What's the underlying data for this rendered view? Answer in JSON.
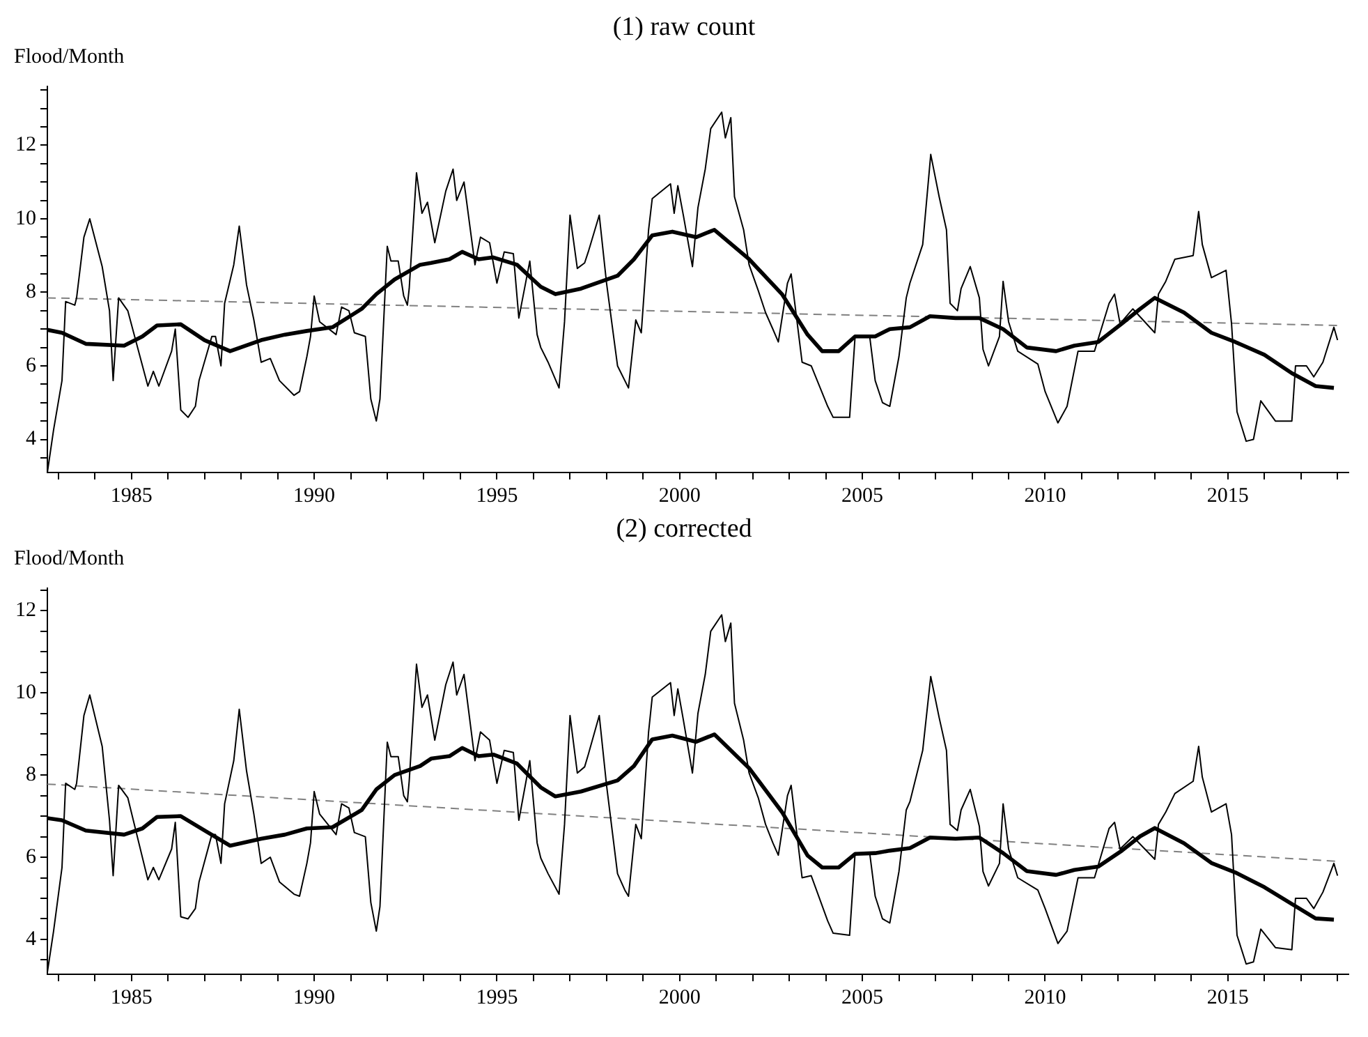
{
  "chart_data": [
    {
      "type": "line",
      "title": "(1) raw count",
      "ylabel": "Flood/Month",
      "marker": "none",
      "xlim": [
        1982.7,
        2018.3
      ],
      "ylim": [
        3.1,
        13.6
      ],
      "xticks": [
        {
          "value": 1983,
          "label": null
        },
        {
          "value": 1984,
          "label": null
        },
        1985,
        {
          "value": 1986,
          "label": null
        },
        {
          "value": 1987,
          "label": null
        },
        {
          "value": 1988,
          "label": null
        },
        {
          "value": 1989,
          "label": null
        },
        1990,
        {
          "value": 1991,
          "label": null
        },
        {
          "value": 1992,
          "label": null
        },
        {
          "value": 1993,
          "label": null
        },
        {
          "value": 1994,
          "label": null
        },
        1995,
        {
          "value": 1996,
          "label": null
        },
        {
          "value": 1997,
          "label": null
        },
        {
          "value": 1998,
          "label": null
        },
        {
          "value": 1999,
          "label": null
        },
        2000,
        {
          "value": 2001,
          "label": null
        },
        {
          "value": 2002,
          "label": null
        },
        {
          "value": 2003,
          "label": null
        },
        {
          "value": 2004,
          "label": null
        },
        2005,
        {
          "value": 2006,
          "label": null
        },
        {
          "value": 2007,
          "label": null
        },
        {
          "value": 2008,
          "label": null
        },
        {
          "value": 2009,
          "label": null
        },
        2010,
        {
          "value": 2011,
          "label": null
        },
        {
          "value": 2012,
          "label": null
        },
        {
          "value": 2013,
          "label": null
        },
        {
          "value": 2014,
          "label": null
        },
        2015,
        {
          "value": 2016,
          "label": null
        },
        {
          "value": 2017,
          "label": null
        },
        {
          "value": 2018,
          "label": null
        }
      ],
      "yticks": [
        {
          "value": 3.5,
          "label": null
        },
        4,
        {
          "value": 4.5,
          "label": null
        },
        {
          "value": 5,
          "label": null
        },
        {
          "value": 5.5,
          "label": null
        },
        6,
        {
          "value": 6.5,
          "label": null
        },
        {
          "value": 7,
          "label": null
        },
        {
          "value": 7.5,
          "label": null
        },
        8,
        {
          "value": 8.5,
          "label": null
        },
        {
          "value": 9,
          "label": null
        },
        {
          "value": 9.5,
          "label": null
        },
        10,
        {
          "value": 10.5,
          "label": null
        },
        {
          "value": 11,
          "label": null
        },
        {
          "value": 11.5,
          "label": null
        },
        12,
        {
          "value": 12.5,
          "label": null
        },
        {
          "value": 13,
          "label": null
        },
        {
          "value": 13.5,
          "label": null
        }
      ],
      "series": [
        {
          "color": "#000000",
          "x": [
            1982.7,
            1982.87,
            1983.1,
            1983.2,
            1983.45,
            1983.5,
            1983.7,
            1983.86,
            1984.2,
            1984.4,
            1984.5,
            1984.65,
            1984.9,
            1985.45,
            1985.6,
            1985.75,
            1986.1,
            1986.2,
            1986.35,
            1986.55,
            1986.75,
            1986.85,
            1987.2,
            1987.3,
            1987.45,
            1987.55,
            1987.8,
            1987.95,
            1988.15,
            1988.35,
            1988.55,
            1988.8,
            1989.05,
            1989.45,
            1989.6,
            1989.8,
            1989.9,
            1990.0,
            1990.15,
            1990.6,
            1990.75,
            1990.95,
            1991.1,
            1991.4,
            1991.55,
            1991.7,
            1991.8,
            1992.0,
            1992.1,
            1992.3,
            1992.45,
            1992.55,
            1992.6,
            1992.8,
            1992.95,
            1993.1,
            1993.3,
            1993.6,
            1993.8,
            1993.9,
            1994.1,
            1994.4,
            1994.55,
            1994.8,
            1995.0,
            1995.2,
            1995.45,
            1995.6,
            1995.9,
            1996.1,
            1996.2,
            1996.4,
            1996.7,
            1996.85,
            1997.0,
            1997.2,
            1997.4,
            1997.5,
            1997.8,
            1998.0,
            1998.3,
            1998.5,
            1998.6,
            1998.8,
            1998.95,
            1999.15,
            1999.25,
            1999.75,
            1999.85,
            1999.95,
            2000.1,
            2000.35,
            2000.5,
            2000.7,
            2000.85,
            2001.15,
            2001.25,
            2001.4,
            2001.5,
            2001.75,
            2001.9,
            2002.15,
            2002.35,
            2002.55,
            2002.7,
            2002.95,
            2003.05,
            2003.35,
            2003.6,
            2004.05,
            2004.2,
            2004.65,
            2004.8,
            2005.2,
            2005.35,
            2005.55,
            2005.75,
            2006.0,
            2006.2,
            2006.3,
            2006.65,
            2006.87,
            2007.1,
            2007.3,
            2007.4,
            2007.6,
            2007.7,
            2007.95,
            2008.2,
            2008.3,
            2008.45,
            2008.75,
            2008.85,
            2009.0,
            2009.25,
            2009.8,
            2010.0,
            2010.35,
            2010.6,
            2010.9,
            2011.35,
            2011.75,
            2011.9,
            2012.05,
            2012.4,
            2013.0,
            2013.1,
            2013.3,
            2013.55,
            2014.05,
            2014.2,
            2014.3,
            2014.55,
            2014.95,
            2015.1,
            2015.25,
            2015.5,
            2015.7,
            2015.9,
            2016.3,
            2016.75,
            2016.85,
            2017.15,
            2017.35,
            2017.6,
            2017.9,
            2018.0
          ],
          "values": [
            3.1,
            4.26,
            5.6,
            7.75,
            7.65,
            7.85,
            9.5,
            10.0,
            8.7,
            7.5,
            5.6,
            7.85,
            7.5,
            5.45,
            5.85,
            5.45,
            6.4,
            7.0,
            4.8,
            4.6,
            4.9,
            5.6,
            6.8,
            6.8,
            6.0,
            7.7,
            8.75,
            9.8,
            8.2,
            7.25,
            6.1,
            6.2,
            5.6,
            5.2,
            5.3,
            6.25,
            6.8,
            7.9,
            7.2,
            6.85,
            7.6,
            7.5,
            6.9,
            6.8,
            5.1,
            4.5,
            5.1,
            9.25,
            8.85,
            8.85,
            7.9,
            7.65,
            8.1,
            11.25,
            10.15,
            10.45,
            9.35,
            10.75,
            11.35,
            10.5,
            11.0,
            8.75,
            9.5,
            9.35,
            8.25,
            9.1,
            9.05,
            7.3,
            8.85,
            6.85,
            6.5,
            6.1,
            5.4,
            7.2,
            10.1,
            8.65,
            8.8,
            9.1,
            10.1,
            8.25,
            6.0,
            5.6,
            5.4,
            7.25,
            6.9,
            9.7,
            10.55,
            10.95,
            10.15,
            10.9,
            10.1,
            8.7,
            10.3,
            11.35,
            12.45,
            12.9,
            12.2,
            12.75,
            10.6,
            9.7,
            8.75,
            8.05,
            7.45,
            7.0,
            6.65,
            8.25,
            8.5,
            6.1,
            6.0,
            4.9,
            4.6,
            4.6,
            6.8,
            6.8,
            5.6,
            5.0,
            4.9,
            6.25,
            7.85,
            8.25,
            9.3,
            11.75,
            10.6,
            9.7,
            7.7,
            7.5,
            8.1,
            8.7,
            7.85,
            6.45,
            6.0,
            6.8,
            8.3,
            7.2,
            6.4,
            6.05,
            5.3,
            4.45,
            4.9,
            6.4,
            6.4,
            7.7,
            7.95,
            7.15,
            7.55,
            6.9,
            7.95,
            8.3,
            8.9,
            9.0,
            10.2,
            9.3,
            8.4,
            8.6,
            7.15,
            4.75,
            3.95,
            4.0,
            5.05,
            4.5,
            4.5,
            6.0,
            6.0,
            5.7,
            6.1,
            7.05,
            6.7
          ]
        },
        {
          "color": "#000000",
          "x": [
            1982.7,
            1983.1,
            1983.75,
            1984.8,
            1985.3,
            1985.7,
            1986.35,
            1987.0,
            1987.7,
            1988.55,
            1989.2,
            1989.8,
            1990.5,
            1991.3,
            1991.7,
            1992.2,
            1992.9,
            1993.2,
            1993.7,
            1994.05,
            1994.5,
            1994.9,
            1995.55,
            1996.2,
            1996.6,
            1997.3,
            1998.3,
            1998.75,
            1999.25,
            1999.8,
            2000.45,
            2000.95,
            2001.9,
            2002.8,
            2003.5,
            2003.9,
            2004.35,
            2004.8,
            2005.35,
            2005.75,
            2006.3,
            2006.85,
            2007.55,
            2008.2,
            2008.85,
            2009.5,
            2010.3,
            2010.8,
            2011.45,
            2012.1,
            2012.6,
            2013.0,
            2013.8,
            2014.55,
            2015.2,
            2016.0,
            2016.75,
            2017.4,
            2017.9
          ],
          "values": [
            6.98,
            6.9,
            6.6,
            6.55,
            6.8,
            7.1,
            7.13,
            6.7,
            6.4,
            6.7,
            6.85,
            6.95,
            7.05,
            7.55,
            7.95,
            8.35,
            8.75,
            8.8,
            8.9,
            9.1,
            8.9,
            8.95,
            8.75,
            8.15,
            7.95,
            8.1,
            8.45,
            8.9,
            9.55,
            9.65,
            9.5,
            9.7,
            8.9,
            7.95,
            6.85,
            6.4,
            6.4,
            6.8,
            6.8,
            7.0,
            7.05,
            7.35,
            7.3,
            7.3,
            7.0,
            6.5,
            6.4,
            6.55,
            6.65,
            7.15,
            7.55,
            7.85,
            7.45,
            6.9,
            6.65,
            6.3,
            5.8,
            5.45,
            5.4
          ]
        },
        {
          "color": "#808080",
          "line_style": "dashed",
          "x": [
            1982.7,
            2018.0
          ],
          "values": [
            7.85,
            7.1
          ]
        }
      ]
    },
    {
      "type": "line",
      "title": "(2) corrected",
      "ylabel": "Flood/Month",
      "marker": "none",
      "xlim": [
        1982.7,
        2018.3
      ],
      "ylim": [
        3.15,
        12.55
      ],
      "xticks": [
        {
          "value": 1983,
          "label": null
        },
        {
          "value": 1984,
          "label": null
        },
        1985,
        {
          "value": 1986,
          "label": null
        },
        {
          "value": 1987,
          "label": null
        },
        {
          "value": 1988,
          "label": null
        },
        {
          "value": 1989,
          "label": null
        },
        1990,
        {
          "value": 1991,
          "label": null
        },
        {
          "value": 1992,
          "label": null
        },
        {
          "value": 1993,
          "label": null
        },
        {
          "value": 1994,
          "label": null
        },
        1995,
        {
          "value": 1996,
          "label": null
        },
        {
          "value": 1997,
          "label": null
        },
        {
          "value": 1998,
          "label": null
        },
        {
          "value": 1999,
          "label": null
        },
        2000,
        {
          "value": 2001,
          "label": null
        },
        {
          "value": 2002,
          "label": null
        },
        {
          "value": 2003,
          "label": null
        },
        {
          "value": 2004,
          "label": null
        },
        2005,
        {
          "value": 2006,
          "label": null
        },
        {
          "value": 2007,
          "label": null
        },
        {
          "value": 2008,
          "label": null
        },
        {
          "value": 2009,
          "label": null
        },
        2010,
        {
          "value": 2011,
          "label": null
        },
        {
          "value": 2012,
          "label": null
        },
        {
          "value": 2013,
          "label": null
        },
        {
          "value": 2014,
          "label": null
        },
        2015,
        {
          "value": 2016,
          "label": null
        },
        {
          "value": 2017,
          "label": null
        },
        {
          "value": 2018,
          "label": null
        }
      ],
      "yticks": [
        {
          "value": 3.5,
          "label": null
        },
        4,
        {
          "value": 4.5,
          "label": null
        },
        {
          "value": 5,
          "label": null
        },
        {
          "value": 5.5,
          "label": null
        },
        6,
        {
          "value": 6.5,
          "label": null
        },
        {
          "value": 7,
          "label": null
        },
        {
          "value": 7.5,
          "label": null
        },
        8,
        {
          "value": 8.5,
          "label": null
        },
        {
          "value": 9,
          "label": null
        },
        {
          "value": 9.5,
          "label": null
        },
        10,
        {
          "value": 10.5,
          "label": null
        },
        {
          "value": 11,
          "label": null
        },
        {
          "value": 11.5,
          "label": null
        },
        12,
        {
          "value": 12.5,
          "label": null
        }
      ],
      "series": [
        {
          "color": "#000000",
          "x": [
            1982.7,
            1982.87,
            1983.1,
            1983.2,
            1983.45,
            1983.5,
            1983.7,
            1983.86,
            1984.2,
            1984.4,
            1984.5,
            1984.65,
            1984.9,
            1985.45,
            1985.6,
            1985.75,
            1986.1,
            1986.2,
            1986.35,
            1986.55,
            1986.75,
            1986.85,
            1987.2,
            1987.3,
            1987.45,
            1987.55,
            1987.8,
            1987.95,
            1988.15,
            1988.35,
            1988.55,
            1988.8,
            1989.05,
            1989.45,
            1989.6,
            1989.8,
            1989.9,
            1990.0,
            1990.15,
            1990.6,
            1990.75,
            1990.95,
            1991.1,
            1991.4,
            1991.55,
            1991.7,
            1991.8,
            1992.0,
            1992.1,
            1992.3,
            1992.45,
            1992.55,
            1992.6,
            1992.8,
            1992.95,
            1993.1,
            1993.3,
            1993.6,
            1993.8,
            1993.9,
            1994.1,
            1994.4,
            1994.55,
            1994.8,
            1995.0,
            1995.2,
            1995.45,
            1995.6,
            1995.9,
            1996.1,
            1996.2,
            1996.4,
            1996.7,
            1996.85,
            1997.0,
            1997.2,
            1997.4,
            1997.5,
            1997.8,
            1998.0,
            1998.3,
            1998.5,
            1998.6,
            1998.8,
            1998.95,
            1999.15,
            1999.25,
            1999.75,
            1999.85,
            1999.95,
            2000.1,
            2000.35,
            2000.5,
            2000.7,
            2000.85,
            2001.15,
            2001.25,
            2001.4,
            2001.5,
            2001.75,
            2001.9,
            2002.15,
            2002.35,
            2002.55,
            2002.7,
            2002.95,
            2003.05,
            2003.35,
            2003.6,
            2004.05,
            2004.2,
            2004.65,
            2004.8,
            2005.2,
            2005.35,
            2005.55,
            2005.75,
            2006.0,
            2006.2,
            2006.3,
            2006.65,
            2006.87,
            2007.1,
            2007.3,
            2007.4,
            2007.6,
            2007.7,
            2007.95,
            2008.2,
            2008.3,
            2008.45,
            2008.75,
            2008.85,
            2009.0,
            2009.25,
            2009.8,
            2010.0,
            2010.35,
            2010.6,
            2010.9,
            2011.35,
            2011.75,
            2011.9,
            2012.05,
            2012.4,
            2013.0,
            2013.1,
            2013.3,
            2013.55,
            2014.05,
            2014.2,
            2014.3,
            2014.55,
            2014.95,
            2015.1,
            2015.25,
            2015.5,
            2015.7,
            2015.9,
            2016.3,
            2016.75,
            2016.85,
            2017.15,
            2017.35,
            2017.6,
            2017.9,
            2018.0
          ],
          "values": [
            3.2,
            4.2,
            5.75,
            7.8,
            7.65,
            7.8,
            9.45,
            9.95,
            8.7,
            6.9,
            5.55,
            7.75,
            7.45,
            5.45,
            5.75,
            5.45,
            6.2,
            6.85,
            4.55,
            4.5,
            4.75,
            5.4,
            6.55,
            6.55,
            5.85,
            7.3,
            8.35,
            9.6,
            8.1,
            7.05,
            5.85,
            6.0,
            5.4,
            5.1,
            5.05,
            5.85,
            6.35,
            7.6,
            7.05,
            6.55,
            7.3,
            7.2,
            6.6,
            6.5,
            4.9,
            4.2,
            4.8,
            8.8,
            8.45,
            8.45,
            7.5,
            7.35,
            7.85,
            10.7,
            9.65,
            9.95,
            8.85,
            10.2,
            10.75,
            9.95,
            10.45,
            8.35,
            9.05,
            8.85,
            7.8,
            8.6,
            8.55,
            6.9,
            8.35,
            6.35,
            5.98,
            5.6,
            5.1,
            6.8,
            9.45,
            8.05,
            8.2,
            8.5,
            9.45,
            7.75,
            5.6,
            5.2,
            5.05,
            6.8,
            6.45,
            9.05,
            9.9,
            10.25,
            9.45,
            10.1,
            9.35,
            8.05,
            9.5,
            10.45,
            11.5,
            11.9,
            11.25,
            11.7,
            9.75,
            8.85,
            8.05,
            7.45,
            6.8,
            6.35,
            6.05,
            7.5,
            7.75,
            5.5,
            5.55,
            4.45,
            4.15,
            4.1,
            6.1,
            6.1,
            5.05,
            4.5,
            4.4,
            5.65,
            7.15,
            7.35,
            8.6,
            10.4,
            9.4,
            8.6,
            6.8,
            6.65,
            7.15,
            7.65,
            6.75,
            5.65,
            5.3,
            5.85,
            7.3,
            6.2,
            5.5,
            5.2,
            4.75,
            3.9,
            4.2,
            5.5,
            5.5,
            6.7,
            6.85,
            6.2,
            6.5,
            5.95,
            6.8,
            7.1,
            7.55,
            7.85,
            8.7,
            7.95,
            7.1,
            7.3,
            6.55,
            4.1,
            3.4,
            3.45,
            4.25,
            3.8,
            3.75,
            5.0,
            5.0,
            4.75,
            5.15,
            5.85,
            5.55
          ]
        },
        {
          "color": "#000000",
          "x": [
            1982.7,
            1983.1,
            1983.75,
            1984.8,
            1985.3,
            1985.7,
            1986.35,
            1987.0,
            1987.7,
            1988.55,
            1989.2,
            1989.8,
            1990.5,
            1991.3,
            1991.7,
            1992.2,
            1992.9,
            1993.2,
            1993.7,
            1994.05,
            1994.5,
            1994.9,
            1995.55,
            1996.2,
            1996.6,
            1997.3,
            1998.3,
            1998.75,
            1999.25,
            1999.8,
            2000.45,
            2000.95,
            2001.9,
            2002.8,
            2003.5,
            2003.9,
            2004.35,
            2004.8,
            2005.35,
            2005.75,
            2006.3,
            2006.85,
            2007.55,
            2008.2,
            2008.85,
            2009.5,
            2010.3,
            2010.8,
            2011.45,
            2012.1,
            2012.6,
            2013.0,
            2013.8,
            2014.55,
            2015.2,
            2016.0,
            2016.75,
            2017.4,
            2017.9
          ],
          "values": [
            6.95,
            6.9,
            6.65,
            6.55,
            6.7,
            6.98,
            7.0,
            6.65,
            6.28,
            6.45,
            6.55,
            6.7,
            6.73,
            7.15,
            7.65,
            8.0,
            8.22,
            8.4,
            8.46,
            8.66,
            8.46,
            8.5,
            8.28,
            7.7,
            7.48,
            7.6,
            7.87,
            8.22,
            8.87,
            8.96,
            8.81,
            8.99,
            8.17,
            7.1,
            6.04,
            5.75,
            5.75,
            6.08,
            6.1,
            6.16,
            6.22,
            6.48,
            6.45,
            6.48,
            6.1,
            5.66,
            5.57,
            5.69,
            5.77,
            6.16,
            6.51,
            6.71,
            6.34,
            5.86,
            5.63,
            5.27,
            4.86,
            4.51,
            4.48
          ]
        },
        {
          "color": "#808080",
          "line_style": "dashed",
          "x": [
            1982.7,
            2018.0
          ],
          "values": [
            7.78,
            5.9
          ]
        }
      ]
    }
  ]
}
